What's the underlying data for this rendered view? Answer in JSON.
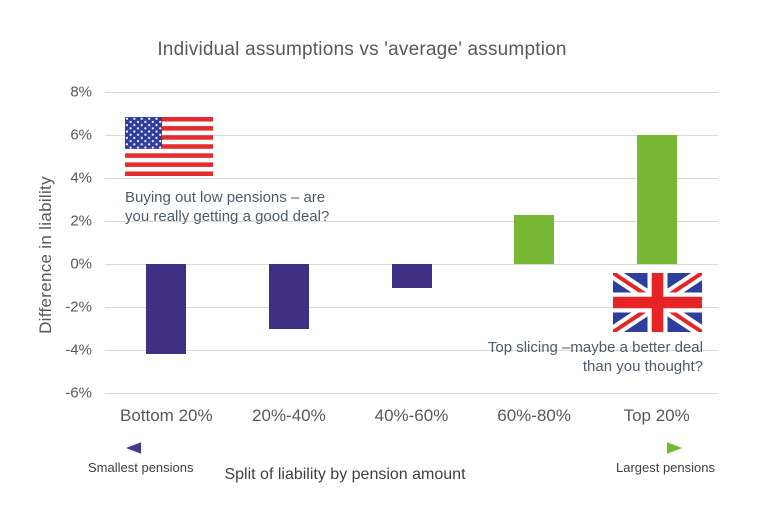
{
  "title": "Individual assumptions vs 'average' assumption",
  "chart_data": {
    "type": "bar",
    "title": "Individual assumptions vs 'average' assumption",
    "categories": [
      "Bottom 20%",
      "20%-40%",
      "40%-60%",
      "60%-80%",
      "Top 20%"
    ],
    "values": [
      -4.2,
      -3.0,
      -1.1,
      2.3,
      6.0
    ],
    "xlabel": "Split of liability by pension amount",
    "ylabel": "Difference in liability",
    "ylim": [
      -6,
      8
    ],
    "yticks": [
      8,
      6,
      4,
      2,
      0,
      -2,
      -4,
      -6
    ],
    "ytick_labels": [
      "8%",
      "6%",
      "4%",
      "2%",
      "0%",
      "-2%",
      "-4%",
      "-6%"
    ],
    "grid": true,
    "legend": "none",
    "negative_bar_color": "#3E2F85",
    "positive_bar_color": "#77B733"
  },
  "annotations": {
    "us": {
      "flag": "us-flag",
      "line1": "Buying out low pensions – are",
      "line2": "you really getting a good deal?"
    },
    "uk": {
      "flag": "uk-flag",
      "line1": "Top slicing –maybe a better deal",
      "line2": "than you thought?"
    }
  },
  "pension_axis": {
    "left_label": "Smallest pensions",
    "right_label": "Largest pensions",
    "center_label": "Split of liability by pension amount",
    "gradient_start": "#3C3A91",
    "gradient_mid": "#2AA9C9",
    "gradient_end": "#72B833"
  },
  "colors": {
    "title_text": "#595959",
    "axis_text": "#595959",
    "annotation_text": "#4C5B6B",
    "gridline": "#D9D9D9",
    "footer_text": "#3F3F3F"
  }
}
